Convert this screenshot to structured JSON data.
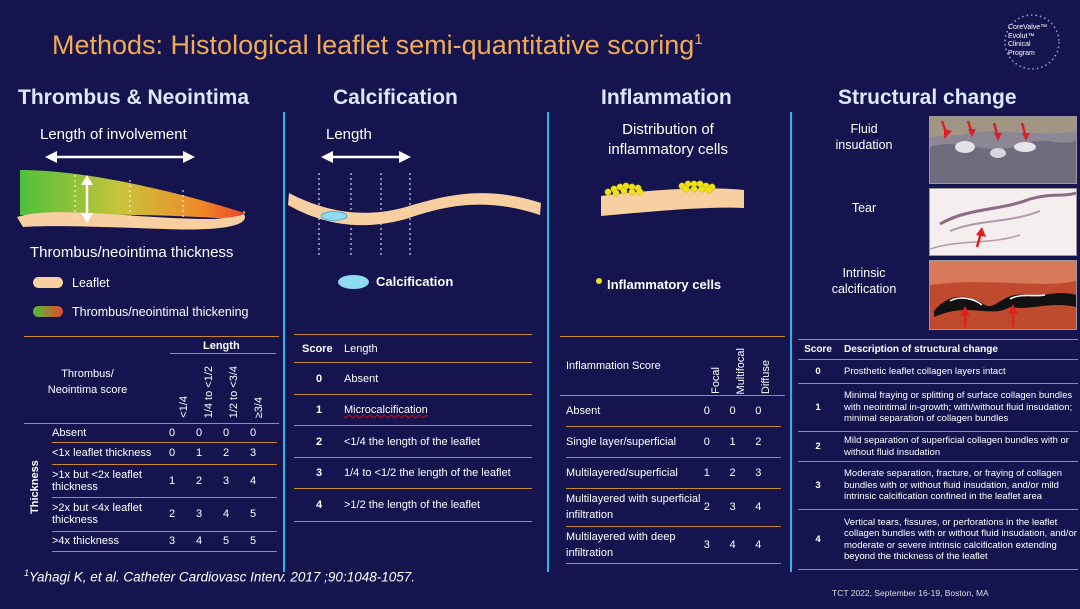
{
  "title": "Methods: Histological leaflet semi-quantitative scoring",
  "title_ref": "1",
  "logo": {
    "lines": [
      "CoreValve™",
      "Evolut™",
      "Clinical",
      "Program"
    ]
  },
  "thrombus": {
    "heading": "Thrombus & Neointima",
    "length_label": "Length of involvement",
    "thickness_label": "Thrombus/neointima thickness",
    "legend": [
      "Leaflet",
      "Thrombus/neointimal thickening"
    ],
    "table": {
      "length_header": "Length",
      "score_header": "Thrombus/ Neointima score",
      "columns": [
        "<1/4",
        "1/4 to <1/2",
        "1/2 to <3/4",
        "≥3/4"
      ],
      "side_label": "Thickness",
      "rows": [
        {
          "label": "Absent",
          "values": [
            "0",
            "0",
            "0",
            "0"
          ]
        },
        {
          "label": "<1x leaflet thickness",
          "values": [
            "0",
            "1",
            "2",
            "3"
          ]
        },
        {
          "label": ">1x but <2x leaflet thickness",
          "values": [
            "1",
            "2",
            "3",
            "4"
          ]
        },
        {
          "label": ">2x but <4x leaflet thickness",
          "values": [
            "2",
            "3",
            "4",
            "5"
          ]
        },
        {
          "label": ">4x thickness",
          "values": [
            "3",
            "4",
            "5",
            "5"
          ]
        }
      ]
    }
  },
  "calcification": {
    "heading": "Calcification",
    "length_label": "Length",
    "legend": "Calcification",
    "table": {
      "headers": [
        "Score",
        "Length"
      ],
      "rows": [
        {
          "score": "0",
          "desc": "Absent"
        },
        {
          "score": "1",
          "desc": "Microcalcification"
        },
        {
          "score": "2",
          "desc": "<1/4 the length of the leaflet"
        },
        {
          "score": "3",
          "desc": "1/4 to <1/2 the length of the leaflet"
        },
        {
          "score": "4",
          "desc": ">1/2 the length of the leaflet"
        }
      ]
    }
  },
  "inflammation": {
    "heading": "Inflammation",
    "dist_label": "Distribution of inflammatory cells",
    "legend": "Inflammatory cells",
    "table": {
      "score_header": "Inflammation Score",
      "columns": [
        "Focal",
        "Multifocal",
        "Diffuse"
      ],
      "rows": [
        {
          "label": "Absent",
          "values": [
            "0",
            "0",
            "0"
          ]
        },
        {
          "label": "Single layer/superficial",
          "values": [
            "0",
            "1",
            "2"
          ]
        },
        {
          "label": "Multilayered/superficial",
          "values": [
            "1",
            "2",
            "3"
          ]
        },
        {
          "label": "Multilayered with superficial infiltration",
          "values": [
            "2",
            "3",
            "4"
          ]
        },
        {
          "label": "Multilayered with deep infiltration",
          "values": [
            "3",
            "4",
            "4"
          ]
        }
      ]
    }
  },
  "structural": {
    "heading": "Structural change",
    "images": [
      "Fluid insudation",
      "Tear",
      "Intrinsic calcification"
    ],
    "table": {
      "headers": [
        "Score",
        "Description of structural change"
      ],
      "rows": [
        {
          "score": "0",
          "desc": "Prosthetic leaflet collagen layers intact"
        },
        {
          "score": "1",
          "desc": "Minimal fraying or splitting of surface collagen bundles with neointimal in-growth; with/without fluid insudation; minimal separation of collagen bundles"
        },
        {
          "score": "2",
          "desc": "Mild separation of superficial collagen bundles with or without fluid insudation"
        },
        {
          "score": "3",
          "desc": "Moderate separation, fracture, or fraying of collagen bundles with or without fluid insudation, and/or mild intrinsic calcification confined in the leaflet area"
        },
        {
          "score": "4",
          "desc": "Vertical tears, fissures, or perforations in the leaflet collagen bundles with or without fluid insudation, and/or moderate or severe intrinsic calcification extending beyond the thickness of the leaflet"
        }
      ]
    }
  },
  "citation": {
    "ref": "1",
    "text": "Yahagi K, et al. Catheter Cardiovasc Interv. 2017 ;90:1048-1057."
  },
  "footer": "TCT 2022, September 16-19, Boston, MA",
  "colors": {
    "background": "#15144f",
    "title": "#f2aa55",
    "heading": "#dce9ff",
    "divider": "#2bb6e6",
    "rule": "#c8862e",
    "leaflet": "#f8cfa0"
  }
}
